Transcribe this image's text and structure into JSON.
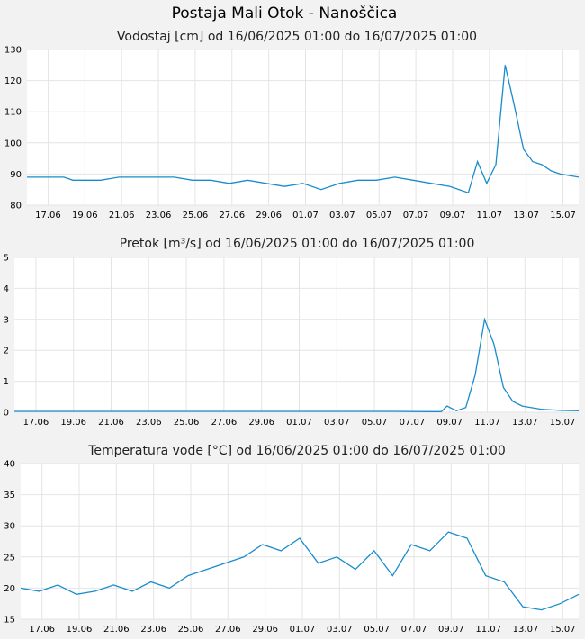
{
  "page": {
    "title": "Postaja Mali Otok - Nanoščica",
    "line_color": "#1a8ccc"
  },
  "chart_data": [
    {
      "type": "line",
      "title": "Vodostaj [cm] od 16/06/2025 01:00 do 16/07/2025 01:00",
      "ylim": [
        80,
        130
      ],
      "yticks": [
        "130",
        "120",
        "110",
        "100",
        "90",
        "80"
      ],
      "xticks": [
        "17.06",
        "19.06",
        "21.06",
        "23.06",
        "25.06",
        "27.06",
        "29.06",
        "01.07",
        "03.07",
        "05.07",
        "07.07",
        "09.07",
        "11.07",
        "13.07",
        "15.07"
      ],
      "grid": true,
      "series": [
        {
          "x": [
            0,
            2,
            2.5,
            4,
            5,
            8,
            9,
            10,
            11,
            12,
            14,
            15,
            16,
            17,
            18,
            19,
            20,
            21,
            22,
            23,
            23.5,
            24,
            24.5,
            25,
            25.5,
            26,
            26.5,
            27,
            27.5,
            28,
            28.5,
            29,
            30
          ],
          "values": [
            89,
            89,
            88,
            88,
            89,
            89,
            88,
            88,
            87,
            88,
            86,
            87,
            85,
            87,
            88,
            88,
            89,
            88,
            87,
            86,
            85,
            84,
            94,
            87,
            93,
            125,
            112,
            98,
            94,
            93,
            91,
            90,
            89
          ]
        }
      ]
    },
    {
      "type": "line",
      "title": "Pretok [m³/s] od 16/06/2025 01:00 do 16/07/2025 01:00",
      "ylim": [
        0,
        5
      ],
      "yticks": [
        "5",
        "4",
        "3",
        "2",
        "1",
        "0"
      ],
      "xticks": [
        "17.06",
        "19.06",
        "21.06",
        "23.06",
        "25.06",
        "27.06",
        "29.06",
        "01.07",
        "03.07",
        "05.07",
        "07.07",
        "09.07",
        "11.07",
        "13.07",
        "15.07"
      ],
      "grid": true,
      "series": [
        {
          "x": [
            0,
            10,
            20,
            22,
            22.7,
            23,
            23.5,
            24,
            24.5,
            25,
            25.5,
            26,
            26.5,
            27,
            28,
            29,
            30
          ],
          "values": [
            0.03,
            0.03,
            0.03,
            0.02,
            0.02,
            0.2,
            0.05,
            0.15,
            1.2,
            3.0,
            2.2,
            0.8,
            0.35,
            0.2,
            0.1,
            0.06,
            0.05
          ]
        }
      ]
    },
    {
      "type": "line",
      "title": "Temperatura vode [°C] od 16/06/2025 01:00 do 16/07/2025 01:00",
      "ylim": [
        15,
        40
      ],
      "yticks": [
        "40",
        "35",
        "30",
        "25",
        "20",
        "15"
      ],
      "xticks": [
        "17.06",
        "19.06",
        "21.06",
        "23.06",
        "25.06",
        "27.06",
        "29.06",
        "01.07",
        "03.07",
        "05.07",
        "07.07",
        "09.07",
        "11.07",
        "13.07",
        "15.07"
      ],
      "grid": true,
      "series": [
        {
          "x": [
            0,
            1,
            2,
            3,
            4,
            5,
            6,
            7,
            8,
            9,
            10,
            11,
            12,
            13,
            14,
            15,
            16,
            17,
            18,
            19,
            20,
            21,
            22,
            23,
            24,
            25,
            26,
            27,
            28,
            29,
            30
          ],
          "values": [
            20,
            19.5,
            20.5,
            19,
            19.5,
            20.5,
            19.5,
            21,
            20,
            22,
            23,
            24,
            25,
            27,
            26,
            28,
            24,
            25,
            23,
            26,
            22,
            27,
            26,
            29,
            28,
            22,
            21,
            17,
            16.5,
            17.5,
            19
          ]
        }
      ]
    }
  ]
}
